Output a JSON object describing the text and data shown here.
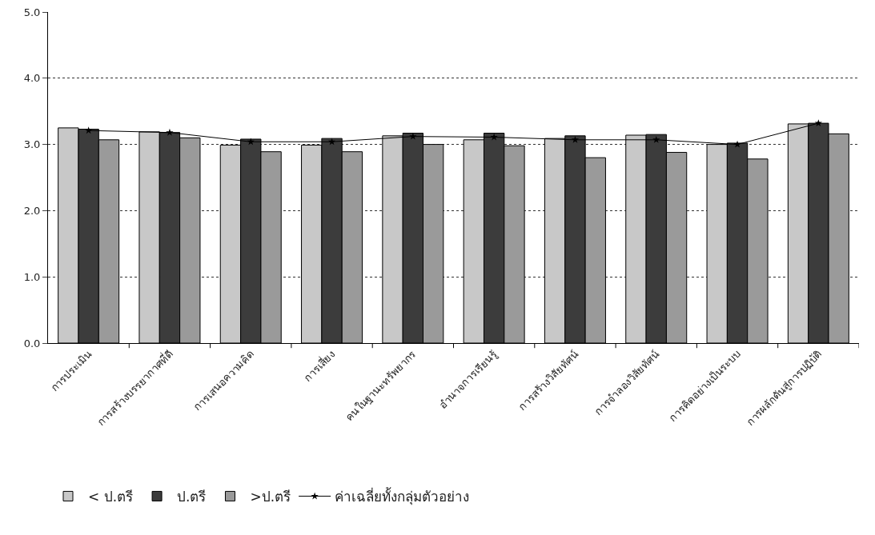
{
  "chart_data": {
    "type": "bar",
    "categories": [
      "การประเมิน",
      "การสร้างบรรยากาศที่ดี",
      "การเสนอความคิด",
      "การเสี่ยง",
      "คนในฐานะทรัพยากร",
      "อำนาจการเรียนรู้",
      "การสร้างวิสัยทัศน์",
      "การจำลองวิสัยทัศน์",
      "การคิดอย่างเป็นระบบ",
      "การผลักดันสู่การปฏิบัติ"
    ],
    "series": [
      {
        "name": "< ป.ตรี",
        "color": "#c8c8c8",
        "values": [
          3.25,
          3.19,
          2.99,
          2.99,
          3.13,
          3.07,
          3.09,
          3.14,
          3.0,
          3.31
        ]
      },
      {
        "name": "ป.ตรี",
        "color": "#3c3c3c",
        "values": [
          3.23,
          3.18,
          3.08,
          3.09,
          3.17,
          3.17,
          3.13,
          3.15,
          3.02,
          3.32
        ]
      },
      {
        "name": ">ป.ตรี",
        "color": "#9a9a9a",
        "values": [
          3.07,
          3.1,
          2.89,
          2.89,
          3.0,
          2.98,
          2.8,
          2.88,
          2.78,
          3.16
        ]
      },
      {
        "name": "ค่าเฉลี่ยทั้งกลุ่มตัวอย่าง",
        "type": "line",
        "color": "#000000",
        "values": [
          3.21,
          3.18,
          3.04,
          3.04,
          3.12,
          3.11,
          3.07,
          3.07,
          3.0,
          3.32
        ]
      }
    ],
    "ylim": [
      0,
      5
    ],
    "yticks": [
      {
        "value": 0,
        "label": "0.0"
      },
      {
        "value": 1,
        "label": "1.0"
      },
      {
        "value": 2,
        "label": "2.0"
      },
      {
        "value": 3,
        "label": "3.0"
      },
      {
        "value": 4,
        "label": "4.0"
      },
      {
        "value": 5,
        "label": "5.0"
      }
    ],
    "grid": "y",
    "legend": "bottom",
    "marker": "star",
    "line_style": "solid"
  }
}
